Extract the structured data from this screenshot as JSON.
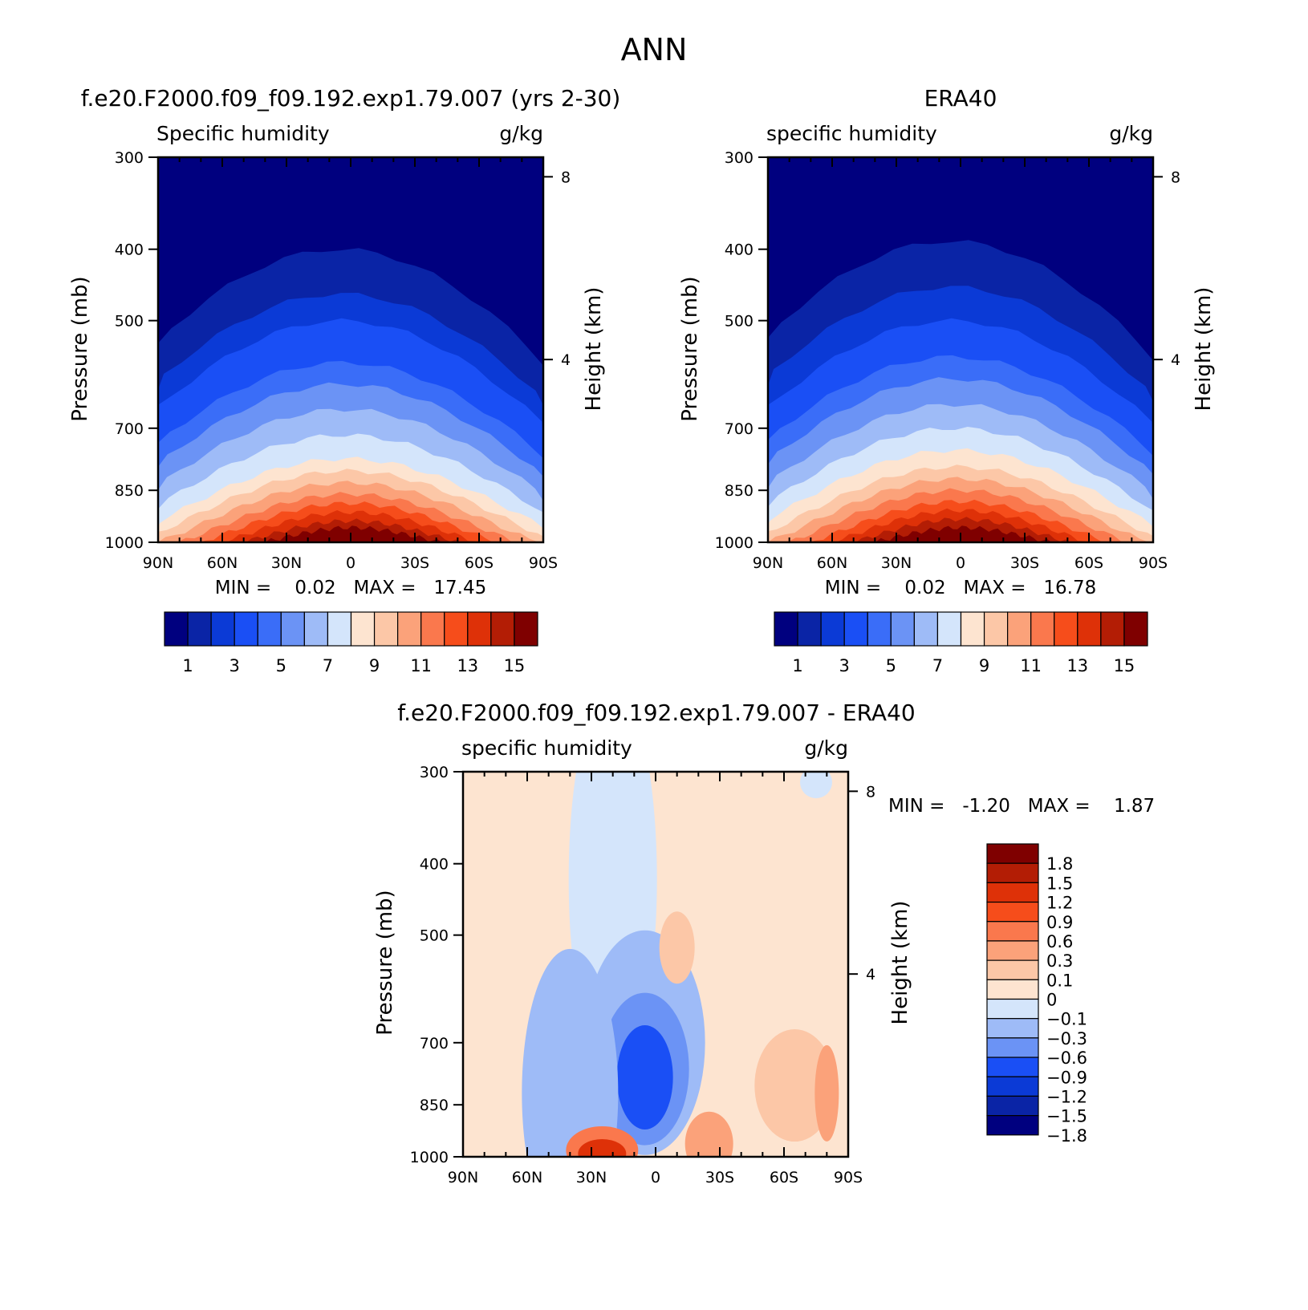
{
  "figure_title": "ANN",
  "palettes": {
    "mean": [
      "#00007f",
      "#0a24a6",
      "#0b3ad6",
      "#1a4ff5",
      "#3a6df8",
      "#6b93f5",
      "#9ebbf7",
      "#d4e5fb",
      "#fde4d0",
      "#fcc7a7",
      "#fba27a",
      "#fa784d",
      "#f64d1b",
      "#de3108",
      "#b31d05",
      "#7f0000"
    ],
    "diff": [
      "#00007f",
      "#0a24a6",
      "#0b3ad6",
      "#1a4ff5",
      "#6b93f5",
      "#9ebbf7",
      "#d4e5fb",
      "#fde4d0",
      "#fcc7a7",
      "#fba27a",
      "#fa784d",
      "#f64d1b",
      "#de3108",
      "#b31d05",
      "#7f0000"
    ]
  },
  "chart_data": [
    {
      "type": "heatmap",
      "panel_title": "f.e20.F2000.f09_f09.192.exp1.79.007 (yrs 2-30)",
      "left_label": "Specific humidity",
      "right_label": "g/kg",
      "xlabel": "",
      "ylabel": "Pressure (mb)",
      "y2label": "Height (km)",
      "x_ticks": [
        "90N",
        "60N",
        "30N",
        "0",
        "30S",
        "60S",
        "90S"
      ],
      "y_ticks": [
        "300",
        "400",
        "500",
        "700",
        "850",
        "1000"
      ],
      "y2_ticks": [
        "8",
        "4"
      ],
      "y_scale": "log-pressure",
      "xlim": [
        90,
        -90
      ],
      "ylim": [
        1000,
        300
      ],
      "min_max_text": "MIN =    0.02   MAX =   17.45",
      "colorbar_orientation": "horizontal",
      "colorbar_labels": [
        "1",
        "3",
        "5",
        "7",
        "9",
        "11",
        "13",
        "15"
      ],
      "levels_g_per_kg": [
        1,
        2,
        3,
        4,
        5,
        6,
        7,
        8,
        9,
        10,
        11,
        12,
        13,
        14,
        15
      ],
      "colors_key": "mean",
      "contour_peaks": [
        {
          "level": 1,
          "p_top": 400
        },
        {
          "level": 2,
          "p_top": 460
        },
        {
          "level": 3,
          "p_top": 500
        },
        {
          "level": 4,
          "p_top": 570
        },
        {
          "level": 5,
          "p_top": 610
        },
        {
          "level": 6,
          "p_top": 660
        },
        {
          "level": 7,
          "p_top": 715
        },
        {
          "level": 8,
          "p_top": 770
        },
        {
          "level": 9,
          "p_top": 800
        },
        {
          "level": 10,
          "p_top": 830
        },
        {
          "level": 11,
          "p_top": 860
        },
        {
          "level": 12,
          "p_top": 885
        },
        {
          "level": 13,
          "p_top": 910
        },
        {
          "level": 14,
          "p_top": 935
        },
        {
          "level": 15,
          "p_top": 955
        }
      ]
    },
    {
      "type": "heatmap",
      "panel_title": "ERA40",
      "left_label": "specific humidity",
      "right_label": "g/kg",
      "xlabel": "",
      "ylabel": "Pressure (mb)",
      "y2label": "Height (km)",
      "x_ticks": [
        "90N",
        "60N",
        "30N",
        "0",
        "30S",
        "60S",
        "90S"
      ],
      "y_ticks": [
        "300",
        "400",
        "500",
        "700",
        "850",
        "1000"
      ],
      "y2_ticks": [
        "8",
        "4"
      ],
      "y_scale": "log-pressure",
      "xlim": [
        90,
        -90
      ],
      "ylim": [
        1000,
        300
      ],
      "min_max_text": "MIN =    0.02   MAX =   16.78",
      "colorbar_orientation": "horizontal",
      "colorbar_labels": [
        "1",
        "3",
        "5",
        "7",
        "9",
        "11",
        "13",
        "15"
      ],
      "levels_g_per_kg": [
        1,
        2,
        3,
        4,
        5,
        6,
        7,
        8,
        9,
        10,
        11,
        12,
        13,
        14,
        15
      ],
      "colors_key": "mean",
      "contour_peaks": [
        {
          "level": 1,
          "p_top": 390
        },
        {
          "level": 2,
          "p_top": 450
        },
        {
          "level": 3,
          "p_top": 500
        },
        {
          "level": 4,
          "p_top": 560
        },
        {
          "level": 5,
          "p_top": 600
        },
        {
          "level": 6,
          "p_top": 650
        },
        {
          "level": 7,
          "p_top": 700
        },
        {
          "level": 8,
          "p_top": 750
        },
        {
          "level": 9,
          "p_top": 790
        },
        {
          "level": 10,
          "p_top": 820
        },
        {
          "level": 11,
          "p_top": 850
        },
        {
          "level": 12,
          "p_top": 880
        },
        {
          "level": 13,
          "p_top": 905
        },
        {
          "level": 14,
          "p_top": 930
        },
        {
          "level": 15,
          "p_top": 955
        }
      ]
    },
    {
      "type": "heatmap",
      "panel_title": "f.e20.F2000.f09_f09.192.exp1.79.007 - ERA40",
      "left_label": "specific humidity",
      "right_label": "g/kg",
      "xlabel": "",
      "ylabel": "Pressure (mb)",
      "y2label": "Height (km)",
      "x_ticks": [
        "90N",
        "60N",
        "30N",
        "0",
        "30S",
        "60S",
        "90S"
      ],
      "y_ticks": [
        "300",
        "400",
        "500",
        "700",
        "850",
        "1000"
      ],
      "y2_ticks": [
        "8",
        "4"
      ],
      "y_scale": "log-pressure",
      "xlim": [
        90,
        -90
      ],
      "ylim": [
        1000,
        300
      ],
      "min_max_text": "MIN =   -1.20   MAX =    1.87",
      "colorbar_orientation": "vertical",
      "colorbar_labels": [
        "1.8",
        "1.5",
        "1.2",
        "0.9",
        "0.6",
        "0.3",
        "0.1",
        "0",
        "-0.1",
        "-0.3",
        "-0.6",
        "-0.9",
        "-1.2",
        "-1.5",
        "-1.8"
      ],
      "levels_g_per_kg": [
        -1.8,
        -1.5,
        -1.2,
        -0.9,
        -0.6,
        -0.3,
        -0.1,
        0,
        0.1,
        0.3,
        0.6,
        0.9,
        1.2,
        1.5,
        1.8
      ],
      "colors_key": "diff",
      "features": [
        {
          "name": "positive background",
          "value": 0.05
        },
        {
          "name": "negative plume",
          "lat_center": 10,
          "p_top": 300,
          "p_bottom": 1000,
          "value": -0.05
        },
        {
          "name": "negative core",
          "lat_center": 5,
          "p_center": 780,
          "value": -0.9
        },
        {
          "name": "positive near-surface",
          "lat_center": 25,
          "p_center": 960,
          "value": 1.5
        },
        {
          "name": "positive near-surface",
          "lat_center": -25,
          "p_center": 960,
          "value": 0.6
        },
        {
          "name": "positive high-lat",
          "lat_center": -80,
          "p_center": 800,
          "value": 0.3
        },
        {
          "name": "positive mid-tropo",
          "lat_center": -5,
          "p_center": 520,
          "value": 0.1
        }
      ]
    }
  ]
}
